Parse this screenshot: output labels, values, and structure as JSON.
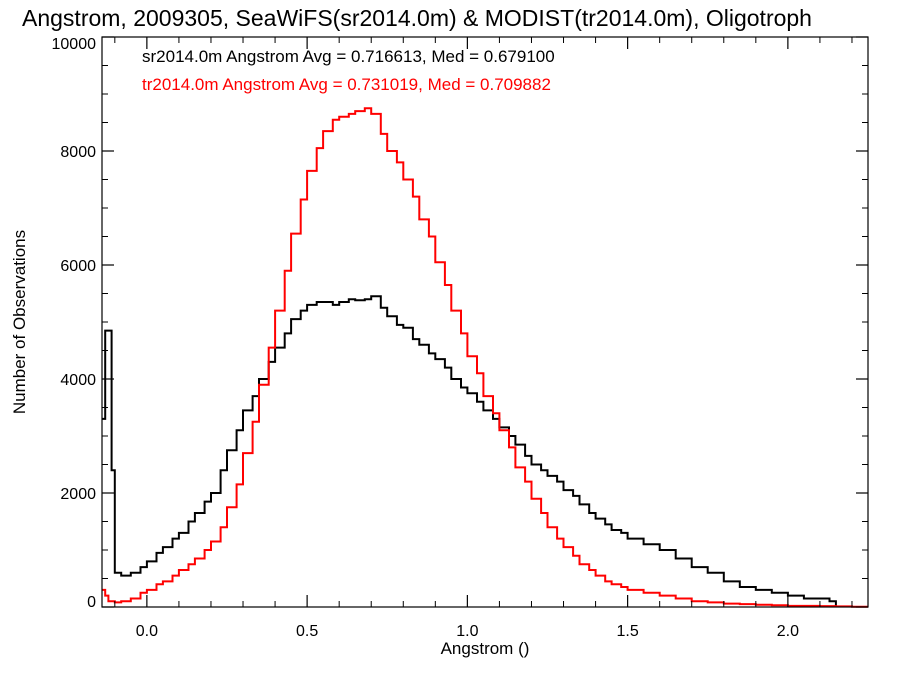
{
  "chart_data": {
    "type": "line",
    "title": "Angstrom, 2009305, SeaWiFS(sr2014.0m) & MODIST(tr2014.0m), Oligotroph",
    "xlabel": "Angstrom ()",
    "ylabel": "Number of Observations",
    "xlim": [
      -0.14,
      2.25
    ],
    "ylim": [
      0,
      10000
    ],
    "x_ticks": [
      0.0,
      0.5,
      1.0,
      1.5,
      2.0
    ],
    "x_tick_labels": [
      "0.0",
      "0.5",
      "1.0",
      "1.5",
      "2.0"
    ],
    "y_ticks": [
      0,
      2000,
      4000,
      6000,
      8000,
      10000
    ],
    "y_tick_labels": [
      "0",
      "2000",
      "4000",
      "6000",
      "8000",
      "10000"
    ],
    "grid": false,
    "annotations": [
      {
        "text": "sr2014.0m Angstrom Avg = 0.716613, Med = 0.679100",
        "color": "#000000"
      },
      {
        "text": "tr2014.0m Angstrom Avg = 0.731019, Med = 0.709882",
        "color": "#ff0000"
      }
    ],
    "series": [
      {
        "color": "#000000",
        "step": true,
        "x": [
          -0.14,
          -0.13,
          -0.12,
          -0.11,
          -0.1,
          -0.08,
          -0.05,
          -0.02,
          0.0,
          0.03,
          0.05,
          0.08,
          0.1,
          0.13,
          0.15,
          0.18,
          0.2,
          0.23,
          0.25,
          0.28,
          0.3,
          0.33,
          0.35,
          0.38,
          0.4,
          0.43,
          0.45,
          0.48,
          0.5,
          0.53,
          0.55,
          0.58,
          0.6,
          0.63,
          0.65,
          0.68,
          0.7,
          0.73,
          0.75,
          0.78,
          0.8,
          0.83,
          0.85,
          0.88,
          0.9,
          0.93,
          0.95,
          0.98,
          1.0,
          1.03,
          1.05,
          1.08,
          1.1,
          1.13,
          1.15,
          1.18,
          1.2,
          1.23,
          1.25,
          1.28,
          1.3,
          1.33,
          1.35,
          1.38,
          1.4,
          1.43,
          1.45,
          1.48,
          1.5,
          1.55,
          1.6,
          1.65,
          1.7,
          1.75,
          1.8,
          1.85,
          1.9,
          1.95,
          2.0,
          2.05,
          2.1,
          2.13,
          2.15
        ],
        "y": [
          3300,
          4850,
          4850,
          2400,
          600,
          550,
          600,
          700,
          800,
          950,
          1050,
          1200,
          1300,
          1500,
          1650,
          1850,
          2000,
          2400,
          2750,
          3100,
          3450,
          3700,
          4000,
          4300,
          4550,
          4800,
          5050,
          5200,
          5300,
          5350,
          5350,
          5300,
          5350,
          5400,
          5380,
          5400,
          5450,
          5250,
          5100,
          4950,
          4900,
          4700,
          4600,
          4450,
          4350,
          4200,
          4000,
          3850,
          3750,
          3600,
          3450,
          3300,
          3150,
          3000,
          2850,
          2650,
          2500,
          2400,
          2300,
          2200,
          2050,
          1950,
          1800,
          1650,
          1550,
          1450,
          1350,
          1300,
          1200,
          1100,
          1000,
          850,
          700,
          600,
          450,
          350,
          300,
          250,
          200,
          150,
          150,
          100,
          0
        ]
      },
      {
        "color": "#ff0000",
        "step": true,
        "x": [
          -0.14,
          -0.13,
          -0.12,
          -0.1,
          -0.08,
          -0.05,
          -0.02,
          0.0,
          0.03,
          0.05,
          0.08,
          0.1,
          0.13,
          0.15,
          0.18,
          0.2,
          0.23,
          0.25,
          0.28,
          0.3,
          0.33,
          0.35,
          0.38,
          0.4,
          0.43,
          0.45,
          0.48,
          0.5,
          0.53,
          0.55,
          0.58,
          0.6,
          0.63,
          0.65,
          0.68,
          0.7,
          0.73,
          0.75,
          0.78,
          0.8,
          0.83,
          0.85,
          0.88,
          0.9,
          0.93,
          0.95,
          0.98,
          1.0,
          1.03,
          1.05,
          1.08,
          1.1,
          1.13,
          1.15,
          1.18,
          1.2,
          1.23,
          1.25,
          1.28,
          1.3,
          1.33,
          1.35,
          1.38,
          1.4,
          1.43,
          1.45,
          1.48,
          1.5,
          1.55,
          1.6,
          1.65,
          1.7,
          1.75,
          1.8,
          1.85,
          1.9,
          1.95,
          2.0,
          2.05,
          2.1,
          2.15,
          2.2,
          2.25
        ],
        "y": [
          300,
          200,
          100,
          80,
          100,
          150,
          250,
          300,
          400,
          450,
          550,
          650,
          750,
          850,
          1000,
          1150,
          1400,
          1750,
          2150,
          2700,
          3250,
          3900,
          4550,
          5200,
          5900,
          6550,
          7150,
          7650,
          8050,
          8350,
          8550,
          8600,
          8650,
          8700,
          8750,
          8650,
          8300,
          8000,
          7800,
          7500,
          7200,
          6800,
          6500,
          6050,
          5650,
          5200,
          4800,
          4400,
          4100,
          3700,
          3400,
          3100,
          2800,
          2450,
          2200,
          1900,
          1650,
          1400,
          1200,
          1050,
          900,
          750,
          650,
          550,
          450,
          400,
          350,
          300,
          250,
          200,
          150,
          100,
          80,
          60,
          50,
          40,
          30,
          20,
          20,
          15,
          10,
          5,
          5
        ]
      }
    ]
  }
}
